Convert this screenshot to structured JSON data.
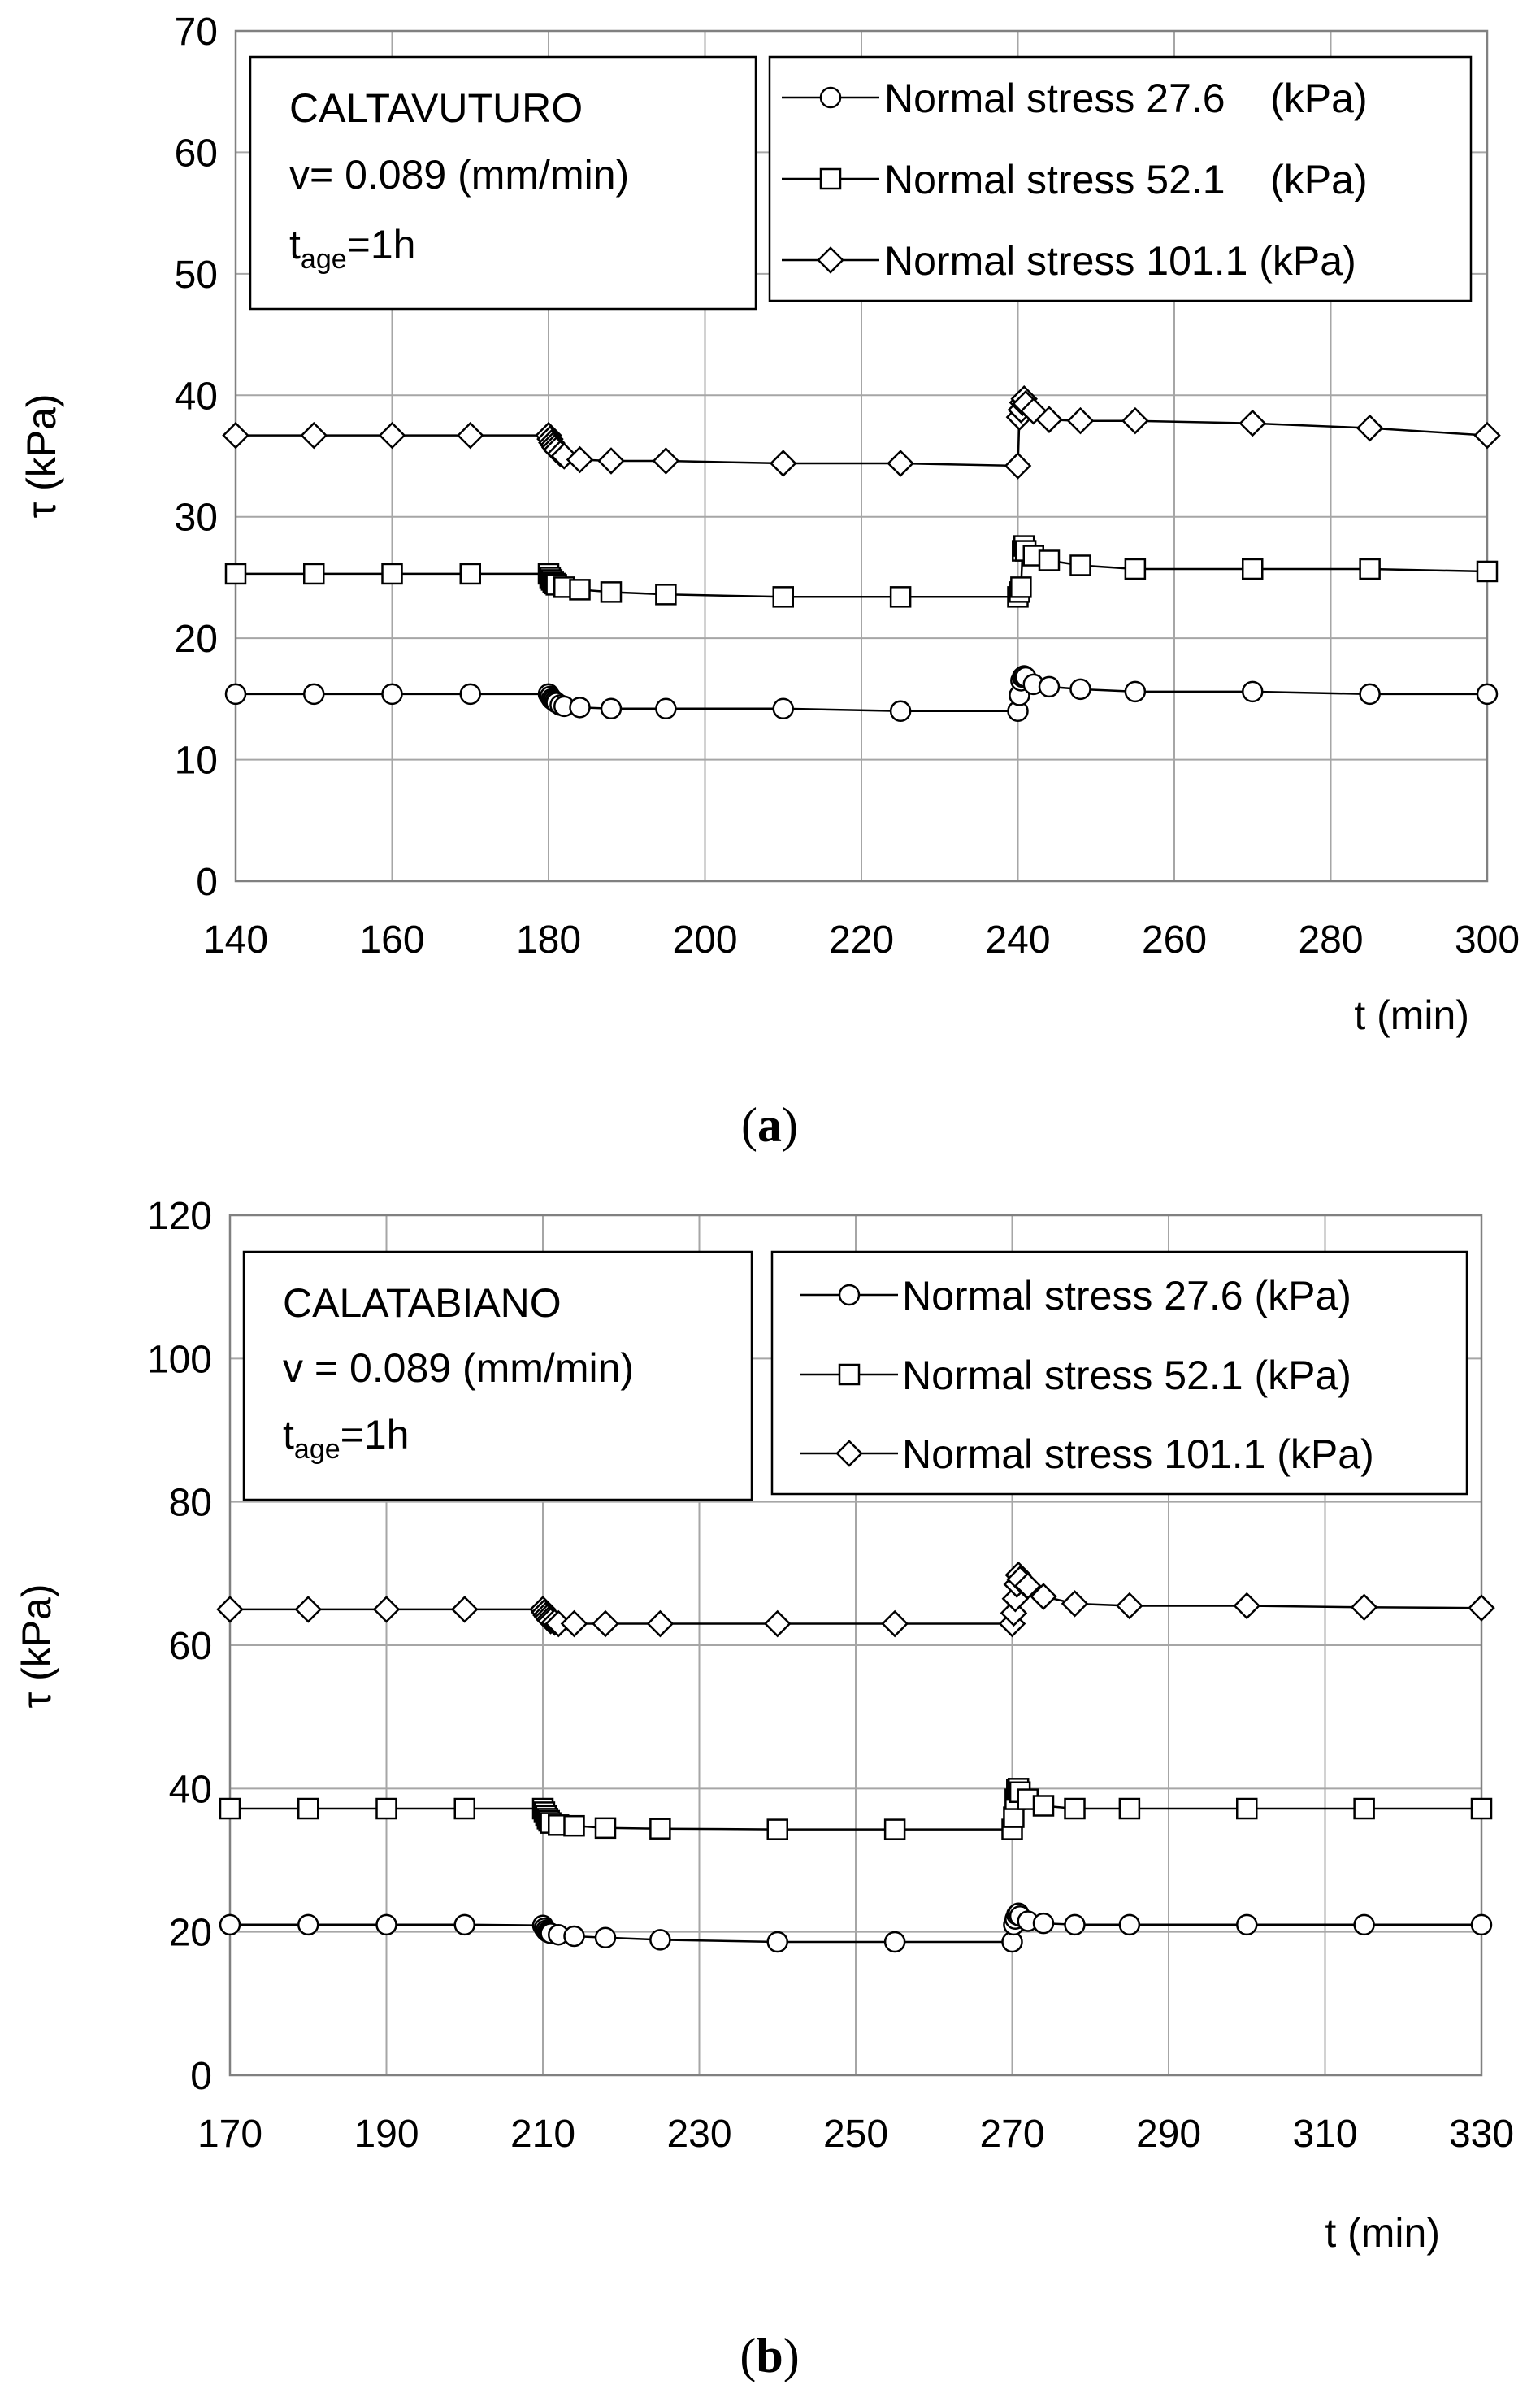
{
  "chart_data": [
    {
      "type": "line",
      "panel_label": "a",
      "site": "CALTAVUTURO",
      "velocity_text": "v= 0.089 (mm/min)",
      "tage_base": "t",
      "tage_sub": "age",
      "tage_value": "=1h",
      "xlabel": "t (min)",
      "ylabel": "τ (kPa)",
      "xlim": [
        140,
        300
      ],
      "ylim": [
        0,
        70
      ],
      "xticks": [
        140,
        160,
        180,
        200,
        220,
        240,
        260,
        280,
        300
      ],
      "yticks": [
        0,
        10,
        20,
        30,
        40,
        50,
        60,
        70
      ],
      "grid": true,
      "legend_position": "top-right",
      "series": [
        {
          "name": "Normal stress 27.6    (kPa)",
          "marker": "circle",
          "x": [
            140,
            150,
            160,
            170,
            180,
            180.2,
            180.4,
            180.6,
            180.8,
            181,
            181.5,
            182,
            184,
            188,
            195,
            210,
            225,
            240,
            240.2,
            240.4,
            240.6,
            240.8,
            241,
            242,
            244,
            248,
            255,
            270,
            285,
            300
          ],
          "y": [
            15.4,
            15.4,
            15.4,
            15.4,
            15.4,
            15.2,
            15.0,
            14.9,
            14.8,
            14.7,
            14.5,
            14.4,
            14.3,
            14.2,
            14.2,
            14.2,
            14.0,
            14.0,
            15.3,
            16.5,
            16.8,
            16.9,
            16.8,
            16.2,
            16.0,
            15.8,
            15.6,
            15.6,
            15.4,
            15.4
          ]
        },
        {
          "name": "Normal stress 52.1    (kPa)",
          "marker": "square",
          "x": [
            140,
            150,
            160,
            170,
            180,
            180.2,
            180.4,
            180.6,
            180.8,
            181,
            182,
            184,
            188,
            195,
            210,
            225,
            240,
            240.2,
            240.4,
            240.6,
            240.8,
            241,
            242,
            244,
            248,
            255,
            270,
            285,
            300
          ],
          "y": [
            25.3,
            25.3,
            25.3,
            25.3,
            25.3,
            25.0,
            24.8,
            24.6,
            24.5,
            24.4,
            24.2,
            24.0,
            23.8,
            23.6,
            23.4,
            23.4,
            23.4,
            23.8,
            24.2,
            27.2,
            27.6,
            27.2,
            26.8,
            26.4,
            26.0,
            25.7,
            25.7,
            25.7,
            25.5
          ]
        },
        {
          "name": "Normal stress 101.1 (kPa)",
          "marker": "diamond",
          "x": [
            140,
            150,
            160,
            170,
            180,
            180.2,
            180.4,
            180.6,
            180.8,
            181,
            181.5,
            182,
            184,
            188,
            195,
            210,
            225,
            240,
            240.2,
            240.4,
            240.6,
            240.8,
            241,
            242,
            244,
            248,
            255,
            270,
            285,
            300
          ],
          "y": [
            36.7,
            36.7,
            36.7,
            36.7,
            36.7,
            36.4,
            36.1,
            35.9,
            35.7,
            35.5,
            35.2,
            35.0,
            34.7,
            34.6,
            34.6,
            34.4,
            34.4,
            34.2,
            38.2,
            38.8,
            39.4,
            39.7,
            39.3,
            38.7,
            38.0,
            37.9,
            37.9,
            37.7,
            37.3,
            36.7
          ]
        }
      ]
    },
    {
      "type": "line",
      "panel_label": "b",
      "site": "CALATABIANO",
      "velocity_text": "v = 0.089 (mm/min)",
      "tage_base": "t",
      "tage_sub": "age",
      "tage_value": "=1h",
      "xlabel": "t (min)",
      "ylabel": "τ (kPa)",
      "xlim": [
        170,
        330
      ],
      "ylim": [
        0,
        120
      ],
      "xticks": [
        170,
        190,
        210,
        230,
        250,
        270,
        290,
        310,
        330
      ],
      "yticks": [
        0,
        20,
        40,
        60,
        80,
        100,
        120
      ],
      "grid": true,
      "legend_position": "top-right",
      "series": [
        {
          "name": "Normal stress 27.6 (kPa)",
          "marker": "circle",
          "x": [
            170,
            180,
            190,
            200,
            210,
            210.2,
            210.4,
            210.6,
            210.8,
            211,
            212,
            214,
            218,
            225,
            240,
            255,
            270,
            270.2,
            270.4,
            270.6,
            270.8,
            271,
            272,
            274,
            278,
            285,
            300,
            315,
            330
          ],
          "y": [
            21.0,
            21.0,
            21.0,
            21.0,
            20.9,
            20.5,
            20.2,
            20.0,
            19.9,
            19.8,
            19.6,
            19.4,
            19.2,
            18.9,
            18.6,
            18.6,
            18.6,
            21.0,
            21.8,
            22.4,
            22.6,
            22.2,
            21.5,
            21.2,
            21.0,
            21.0,
            21.0,
            21.0,
            21.0
          ]
        },
        {
          "name": "Normal stress 52.1 (kPa)",
          "marker": "square",
          "x": [
            170,
            180,
            190,
            200,
            210,
            210.2,
            210.4,
            210.6,
            210.8,
            211,
            212,
            214,
            218,
            225,
            240,
            255,
            270,
            270.2,
            270.4,
            270.6,
            270.8,
            271,
            272,
            274,
            278,
            285,
            300,
            315,
            330
          ],
          "y": [
            37.2,
            37.2,
            37.2,
            37.2,
            37.2,
            36.7,
            36.2,
            35.8,
            35.5,
            35.2,
            34.9,
            34.8,
            34.5,
            34.4,
            34.3,
            34.3,
            34.3,
            36.0,
            38.5,
            39.8,
            40.0,
            39.5,
            38.5,
            37.6,
            37.2,
            37.2,
            37.2,
            37.2,
            37.2
          ]
        },
        {
          "name": "Normal stress 101.1 (kPa)",
          "marker": "diamond",
          "x": [
            170,
            180,
            190,
            200,
            210,
            210.2,
            210.4,
            210.6,
            210.8,
            211,
            211.5,
            212,
            214,
            218,
            225,
            240,
            255,
            270,
            270.2,
            270.4,
            270.6,
            270.8,
            271,
            272,
            274,
            278,
            285,
            300,
            315,
            330
          ],
          "y": [
            65.0,
            65.0,
            65.0,
            65.0,
            65.0,
            64.6,
            64.2,
            63.9,
            63.6,
            63.4,
            63.2,
            63.0,
            63.0,
            63.0,
            63.0,
            63.0,
            63.0,
            63.0,
            64.5,
            66.5,
            68.5,
            69.8,
            69.2,
            68.3,
            66.8,
            65.8,
            65.5,
            65.5,
            65.3,
            65.2
          ]
        }
      ]
    }
  ]
}
